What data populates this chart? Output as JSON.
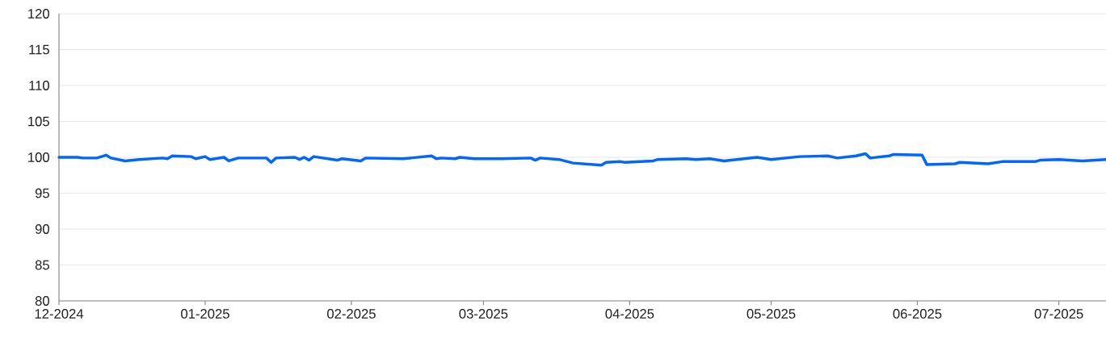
{
  "chart_data": {
    "type": "line",
    "x": [
      "2024-12-01",
      "2024-12-05",
      "2024-12-06",
      "2024-12-09",
      "2024-12-11",
      "2024-12-12",
      "2024-12-15",
      "2024-12-18",
      "2024-12-23",
      "2024-12-24",
      "2024-12-25",
      "2024-12-29",
      "2024-12-30",
      "2025-01-01",
      "2025-01-02",
      "2025-01-05",
      "2025-01-06",
      "2025-01-08",
      "2025-01-14",
      "2025-01-15",
      "2025-01-16",
      "2025-01-20",
      "2025-01-21",
      "2025-01-22",
      "2025-01-23",
      "2025-01-24",
      "2025-01-29",
      "2025-01-30",
      "2025-02-03",
      "2025-02-04",
      "2025-02-12",
      "2025-02-18",
      "2025-02-19",
      "2025-02-20",
      "2025-02-23",
      "2025-02-24",
      "2025-02-27",
      "2025-03-05",
      "2025-03-11",
      "2025-03-12",
      "2025-03-13",
      "2025-03-17",
      "2025-03-20",
      "2025-03-26",
      "2025-03-27",
      "2025-03-30",
      "2025-03-31",
      "2025-04-06",
      "2025-04-07",
      "2025-04-13",
      "2025-04-15",
      "2025-04-18",
      "2025-04-21",
      "2025-04-28",
      "2025-05-01",
      "2025-05-07",
      "2025-05-13",
      "2025-05-15",
      "2025-05-19",
      "2025-05-21",
      "2025-05-22",
      "2025-05-26",
      "2025-05-27",
      "2025-06-02",
      "2025-06-03",
      "2025-06-09",
      "2025-06-10",
      "2025-06-16",
      "2025-06-19",
      "2025-06-26",
      "2025-06-27",
      "2025-07-01",
      "2025-07-06",
      "2025-07-11"
    ],
    "series": [
      {
        "color": "#0066ff",
        "values": [
          100.0,
          100.0,
          99.9,
          99.9,
          100.3,
          99.9,
          99.5,
          99.7,
          99.9,
          99.8,
          100.2,
          100.1,
          99.8,
          100.1,
          99.7,
          100.0,
          99.5,
          99.9,
          99.9,
          99.3,
          99.9,
          100.0,
          99.7,
          100.0,
          99.6,
          100.1,
          99.6,
          99.8,
          99.5,
          99.9,
          99.8,
          100.2,
          99.8,
          99.9,
          99.8,
          100.0,
          99.8,
          99.8,
          99.9,
          99.6,
          99.9,
          99.7,
          99.2,
          98.9,
          99.3,
          99.4,
          99.3,
          99.5,
          99.7,
          99.8,
          99.7,
          99.8,
          99.5,
          100.0,
          99.7,
          100.1,
          100.2,
          99.9,
          100.2,
          100.5,
          99.9,
          100.2,
          100.4,
          100.3,
          99.0,
          99.1,
          99.3,
          99.1,
          99.4,
          99.4,
          99.6,
          99.7,
          99.5,
          99.7
        ]
      }
    ],
    "xlim": [
      "2024-12-01",
      "2025-07-11"
    ],
    "xticks": [
      {
        "value": "2024-12-01",
        "label": "12-2024"
      },
      {
        "value": "2025-01-01",
        "label": "01-2025"
      },
      {
        "value": "2025-02-01",
        "label": "02-2025"
      },
      {
        "value": "2025-03-01",
        "label": "03-2025"
      },
      {
        "value": "2025-04-01",
        "label": "04-2025"
      },
      {
        "value": "2025-05-01",
        "label": "05-2025"
      },
      {
        "value": "2025-06-01",
        "label": "06-2025"
      },
      {
        "value": "2025-07-01",
        "label": "07-2025"
      }
    ],
    "ylim": [
      80,
      120
    ],
    "yticks": [
      80,
      85,
      90,
      95,
      100,
      105,
      110,
      115,
      120
    ],
    "grid": "y",
    "marker": "none",
    "line_style": "solid"
  }
}
